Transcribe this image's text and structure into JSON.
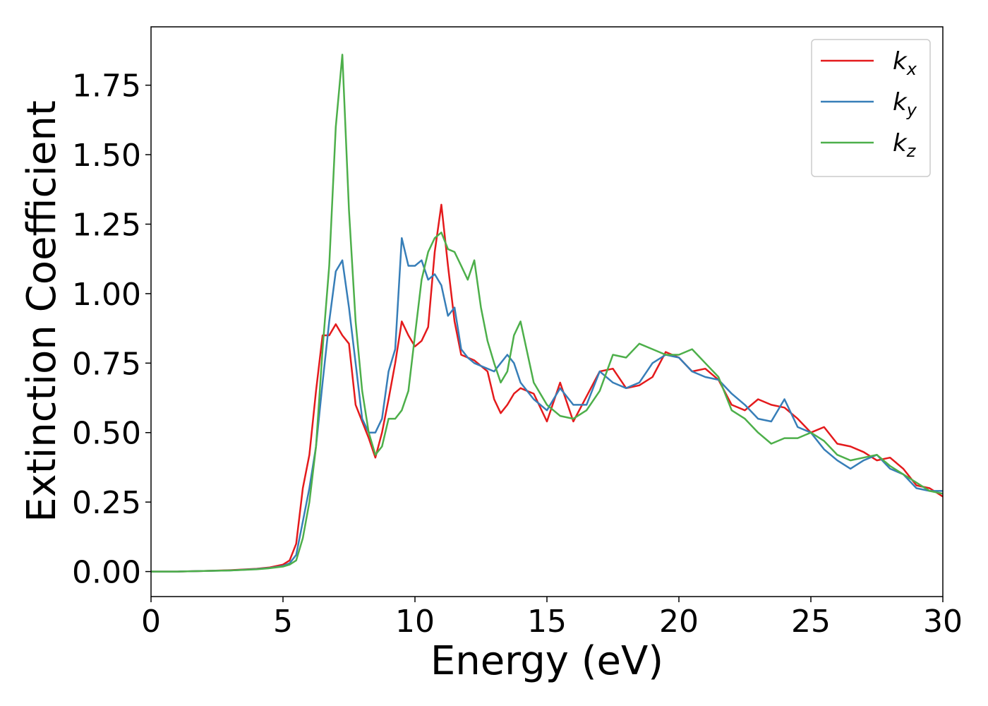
{
  "chart_data": {
    "type": "line",
    "xlabel": "Energy (eV)",
    "ylabel": "Extinction Coefficient",
    "x": [
      0,
      1,
      2,
      3,
      4,
      4.5,
      5,
      5.25,
      5.5,
      5.75,
      6,
      6.25,
      6.5,
      6.75,
      7,
      7.25,
      7.5,
      7.75,
      8,
      8.25,
      8.5,
      8.75,
      9,
      9.25,
      9.5,
      9.75,
      10,
      10.25,
      10.5,
      10.75,
      11,
      11.25,
      11.5,
      11.75,
      12,
      12.25,
      12.5,
      12.75,
      13,
      13.25,
      13.5,
      13.75,
      14,
      14.5,
      15,
      15.5,
      16,
      16.5,
      17,
      17.5,
      18,
      18.5,
      19,
      19.5,
      20,
      20.5,
      21,
      21.5,
      22,
      22.5,
      23,
      23.5,
      24,
      24.5,
      25,
      25.5,
      26,
      26.5,
      27,
      27.5,
      28,
      28.5,
      29,
      29.5,
      30
    ],
    "series": [
      {
        "name": "kx",
        "color": "#e41a1c",
        "values": [
          0,
          0,
          0.002,
          0.005,
          0.01,
          0.015,
          0.025,
          0.04,
          0.1,
          0.3,
          0.42,
          0.65,
          0.85,
          0.85,
          0.89,
          0.85,
          0.82,
          0.6,
          0.54,
          0.48,
          0.41,
          0.5,
          0.62,
          0.75,
          0.9,
          0.85,
          0.81,
          0.83,
          0.88,
          1.15,
          1.32,
          1.1,
          0.9,
          0.78,
          0.77,
          0.76,
          0.74,
          0.72,
          0.62,
          0.57,
          0.6,
          0.64,
          0.66,
          0.64,
          0.54,
          0.68,
          0.54,
          0.63,
          0.72,
          0.73,
          0.66,
          0.67,
          0.7,
          0.79,
          0.77,
          0.72,
          0.73,
          0.69,
          0.6,
          0.58,
          0.62,
          0.6,
          0.59,
          0.55,
          0.5,
          0.52,
          0.46,
          0.45,
          0.43,
          0.4,
          0.41,
          0.37,
          0.31,
          0.3,
          0.27
        ]
      },
      {
        "name": "ky",
        "color": "#377eb8",
        "values": [
          0,
          0,
          0.002,
          0.004,
          0.009,
          0.013,
          0.02,
          0.03,
          0.06,
          0.18,
          0.3,
          0.45,
          0.68,
          0.9,
          1.08,
          1.12,
          0.95,
          0.75,
          0.55,
          0.5,
          0.5,
          0.55,
          0.72,
          0.8,
          1.2,
          1.1,
          1.1,
          1.12,
          1.05,
          1.07,
          1.03,
          0.92,
          0.95,
          0.8,
          0.77,
          0.75,
          0.74,
          0.73,
          0.72,
          0.75,
          0.78,
          0.75,
          0.68,
          0.62,
          0.58,
          0.66,
          0.6,
          0.6,
          0.72,
          0.68,
          0.66,
          0.68,
          0.75,
          0.78,
          0.77,
          0.72,
          0.7,
          0.69,
          0.64,
          0.6,
          0.55,
          0.54,
          0.62,
          0.52,
          0.5,
          0.44,
          0.4,
          0.37,
          0.4,
          0.42,
          0.37,
          0.35,
          0.3,
          0.29,
          0.29
        ]
      },
      {
        "name": "kz",
        "color": "#4daf4a",
        "values": [
          0,
          0,
          0.002,
          0.004,
          0.008,
          0.012,
          0.018,
          0.025,
          0.04,
          0.12,
          0.25,
          0.45,
          0.8,
          1.1,
          1.6,
          1.86,
          1.3,
          0.9,
          0.65,
          0.5,
          0.42,
          0.45,
          0.55,
          0.55,
          0.58,
          0.65,
          0.85,
          1.05,
          1.15,
          1.2,
          1.22,
          1.16,
          1.15,
          1.1,
          1.05,
          1.12,
          0.95,
          0.83,
          0.75,
          0.68,
          0.72,
          0.85,
          0.9,
          0.68,
          0.6,
          0.56,
          0.55,
          0.58,
          0.65,
          0.78,
          0.77,
          0.82,
          0.8,
          0.78,
          0.78,
          0.8,
          0.75,
          0.7,
          0.58,
          0.55,
          0.5,
          0.46,
          0.48,
          0.48,
          0.5,
          0.47,
          0.42,
          0.4,
          0.41,
          0.42,
          0.38,
          0.35,
          0.32,
          0.29,
          0.28
        ]
      }
    ],
    "xlim": [
      0,
      30
    ],
    "xticks": [
      0,
      5,
      10,
      15,
      20,
      25,
      30
    ],
    "ylim": [
      -0.09,
      1.96
    ],
    "yticks": [
      {
        "value": 0,
        "label": "0.00"
      },
      {
        "value": 0.25,
        "label": "0.25"
      },
      {
        "value": 0.5,
        "label": "0.50"
      },
      {
        "value": 0.75,
        "label": "0.75"
      },
      {
        "value": 1,
        "label": "1.00"
      },
      {
        "value": 1.25,
        "label": "1.25"
      },
      {
        "value": 1.5,
        "label": "1.50"
      },
      {
        "value": 1.75,
        "label": "1.75"
      }
    ],
    "legend": "upper right",
    "grid": false
  }
}
